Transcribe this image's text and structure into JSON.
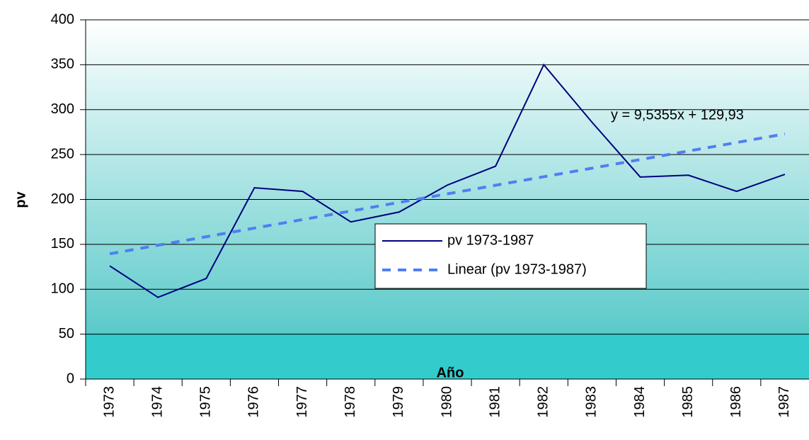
{
  "chart_data": {
    "type": "line",
    "x_label": "Año",
    "y_label": "pv",
    "annotation": "y = 9,5355x + 129,93",
    "categories": [
      "1973",
      "1974",
      "1975",
      "1976",
      "1977",
      "1978",
      "1979",
      "1980",
      "1981",
      "1982",
      "1983",
      "1984",
      "1985",
      "1986",
      "1987"
    ],
    "series": [
      {
        "name": "pv 1973-1987",
        "color": "#000080",
        "style": "solid",
        "values": [
          126,
          91,
          112,
          213,
          209,
          175,
          186,
          216,
          237,
          350,
          286,
          225,
          227,
          209,
          228
        ]
      },
      {
        "name": "Linear (pv 1973-1987)",
        "color": "#4f7ff0",
        "style": "dashed",
        "values": [
          139.5,
          149.0,
          158.5,
          168.1,
          177.6,
          187.1,
          196.7,
          206.2,
          215.8,
          225.3,
          234.8,
          244.4,
          253.9,
          263.4,
          273.0
        ]
      }
    ],
    "ylim": [
      0,
      400
    ],
    "yticks": [
      0,
      50,
      100,
      150,
      200,
      250,
      300,
      350,
      400
    ],
    "grid": true
  }
}
